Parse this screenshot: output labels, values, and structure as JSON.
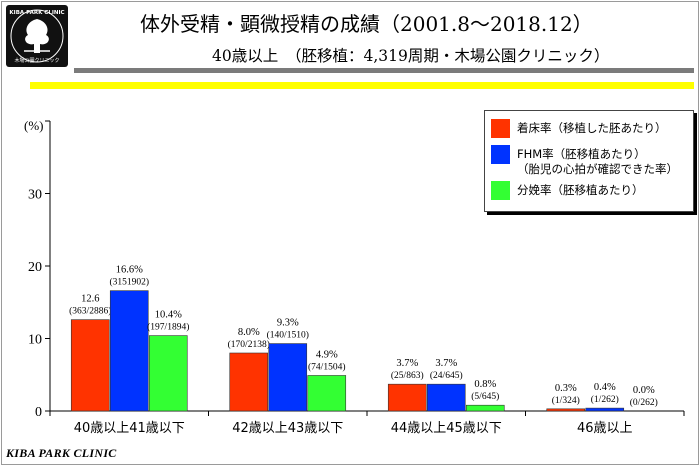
{
  "header": {
    "title": "体外受精・顕微授精の成績（2001.8〜2018.12）",
    "subtitle": "40歳以上　（胚移植：4,319周期・木場公園クリニック）"
  },
  "logo": {
    "text": "KIBA PARK CLINIC",
    "subtext": "木場公園クリニック"
  },
  "footer": {
    "text": "KIBA PARK CLINIC"
  },
  "legend": {
    "items": [
      {
        "label": "着床率（移植した胚あたり）",
        "color": "#ff3300"
      },
      {
        "label": "FHM率（胚移植あたり）",
        "label2": "（胎児の心拍が確認できた率）",
        "color": "#0033ff"
      },
      {
        "label": "分娩率（胚移植あたり）",
        "color": "#33ff33"
      }
    ]
  },
  "chart_data": {
    "type": "bar",
    "ylabel": "(%)",
    "ylim": [
      0,
      40
    ],
    "yticks": [
      0,
      10,
      20,
      30,
      40
    ],
    "ytick_labels": [
      "0",
      "10",
      "20",
      "30",
      ""
    ],
    "categories": [
      "40歳以上41歳以下",
      "42歳以上43歳以下",
      "44歳以上45歳以下",
      "46歳以上"
    ],
    "series": [
      {
        "name": "着床率（移植した胚あたり）",
        "color": "#ff3300",
        "values": [
          12.6,
          8.0,
          3.7,
          0.3
        ],
        "value_labels": [
          "12.6",
          "8.0%",
          "3.7%",
          "0.3%"
        ],
        "count_labels": [
          "(363/2886)",
          "(170/2138)",
          "(25/863)",
          "(1/324)"
        ]
      },
      {
        "name": "FHM率（胚移植あたり）",
        "color": "#0033ff",
        "values": [
          16.6,
          9.3,
          3.7,
          0.4
        ],
        "value_labels": [
          "16.6%",
          "9.3%",
          "3.7%",
          "0.4%"
        ],
        "count_labels": [
          "(3151902)",
          "(140/1510)",
          "(24/645)",
          "(1/262)"
        ]
      },
      {
        "name": "分娩率（胚移植あたり）",
        "color": "#33ff33",
        "values": [
          10.4,
          4.9,
          0.8,
          0.0
        ],
        "value_labels": [
          "10.4%",
          "4.9%",
          "0.8%",
          "0.0%"
        ],
        "count_labels": [
          "(197/1894)",
          "(74/1504)",
          "(5/645)",
          "(0/262)"
        ]
      }
    ]
  }
}
